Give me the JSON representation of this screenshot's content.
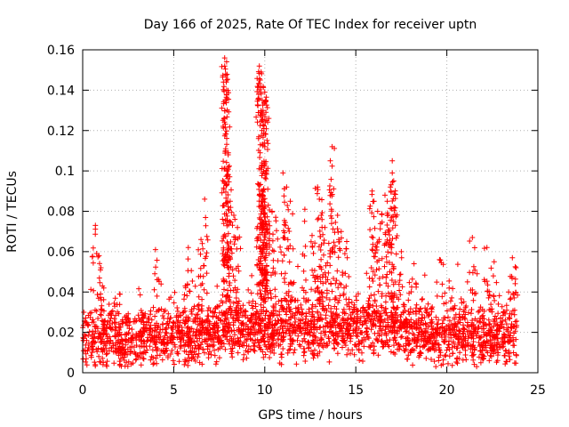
{
  "chart_data": {
    "type": "scatter",
    "title": "Day 166 of 2025, Rate Of TEC Index for receiver uptn",
    "xlabel": "GPS time / hours",
    "ylabel": "ROTI / TECUs",
    "xlim": [
      0,
      25
    ],
    "ylim": [
      0,
      0.16
    ],
    "x_ticks": [
      0,
      5,
      10,
      15,
      20,
      25
    ],
    "x_tick_labels": [
      "0",
      "5",
      "10",
      "15",
      "20",
      "25"
    ],
    "y_ticks": [
      0,
      0.02,
      0.04,
      0.06,
      0.08,
      0.1,
      0.12,
      0.14,
      0.16
    ],
    "y_tick_labels": [
      "0",
      "0.02",
      "0.04",
      "0.06",
      "0.08",
      "0.1",
      "0.12",
      "0.14",
      "0.16"
    ],
    "grid": true,
    "marker": "+",
    "marker_color": "#ff0000",
    "series": [
      {
        "name": "ROTI",
        "baseline_profile": [
          [
            0,
            0.018
          ],
          [
            1,
            0.017
          ],
          [
            2,
            0.016
          ],
          [
            3,
            0.017
          ],
          [
            4,
            0.017
          ],
          [
            5,
            0.018
          ],
          [
            6,
            0.019
          ],
          [
            7,
            0.02
          ],
          [
            8,
            0.022
          ],
          [
            9,
            0.021
          ],
          [
            10,
            0.022
          ],
          [
            11,
            0.022
          ],
          [
            12,
            0.021
          ],
          [
            13,
            0.022
          ],
          [
            14,
            0.023
          ],
          [
            15,
            0.022
          ],
          [
            16,
            0.024
          ],
          [
            17,
            0.023
          ],
          [
            18,
            0.02
          ],
          [
            19,
            0.019
          ],
          [
            20,
            0.019
          ],
          [
            21,
            0.019
          ],
          [
            22,
            0.018
          ],
          [
            23,
            0.018
          ],
          [
            24,
            0.017
          ]
        ],
        "peak_points": [
          [
            0.7,
            0.073
          ],
          [
            0.9,
            0.058
          ],
          [
            1.0,
            0.052
          ],
          [
            4.0,
            0.061
          ],
          [
            5.8,
            0.062
          ],
          [
            6.5,
            0.066
          ],
          [
            6.7,
            0.086
          ],
          [
            7.8,
            0.156
          ],
          [
            7.8,
            0.152
          ],
          [
            7.85,
            0.148
          ],
          [
            7.9,
            0.145
          ],
          [
            7.9,
            0.14
          ],
          [
            8.0,
            0.109
          ],
          [
            8.1,
            0.085
          ],
          [
            8.3,
            0.078
          ],
          [
            8.5,
            0.072
          ],
          [
            9.7,
            0.152
          ],
          [
            9.8,
            0.149
          ],
          [
            9.75,
            0.145
          ],
          [
            10.0,
            0.139
          ],
          [
            10.05,
            0.135
          ],
          [
            9.9,
            0.13
          ],
          [
            10.1,
            0.125
          ],
          [
            9.95,
            0.121
          ],
          [
            10.0,
            0.112
          ],
          [
            9.85,
            0.104
          ],
          [
            10.1,
            0.1
          ],
          [
            9.7,
            0.088
          ],
          [
            9.9,
            0.085
          ],
          [
            10.4,
            0.08
          ],
          [
            10.6,
            0.077
          ],
          [
            11.0,
            0.099
          ],
          [
            11.2,
            0.092
          ],
          [
            11.4,
            0.085
          ],
          [
            12.2,
            0.081
          ],
          [
            12.6,
            0.068
          ],
          [
            12.9,
            0.092
          ],
          [
            13.0,
            0.086
          ],
          [
            13.1,
            0.078
          ],
          [
            13.3,
            0.072
          ],
          [
            13.7,
            0.112
          ],
          [
            13.6,
            0.105
          ],
          [
            14.0,
            0.078
          ],
          [
            14.2,
            0.07
          ],
          [
            14.5,
            0.065
          ],
          [
            15.9,
            0.09
          ],
          [
            16.0,
            0.085
          ],
          [
            16.2,
            0.08
          ],
          [
            16.6,
            0.088
          ],
          [
            17.0,
            0.105
          ],
          [
            17.0,
            0.099
          ],
          [
            16.9,
            0.092
          ],
          [
            17.1,
            0.082
          ],
          [
            16.8,
            0.07
          ],
          [
            17.5,
            0.06
          ],
          [
            18.2,
            0.054
          ],
          [
            19.6,
            0.056
          ],
          [
            21.4,
            0.067
          ],
          [
            22.2,
            0.062
          ],
          [
            22.6,
            0.055
          ],
          [
            23.6,
            0.057
          ],
          [
            23.8,
            0.052
          ]
        ]
      }
    ]
  }
}
